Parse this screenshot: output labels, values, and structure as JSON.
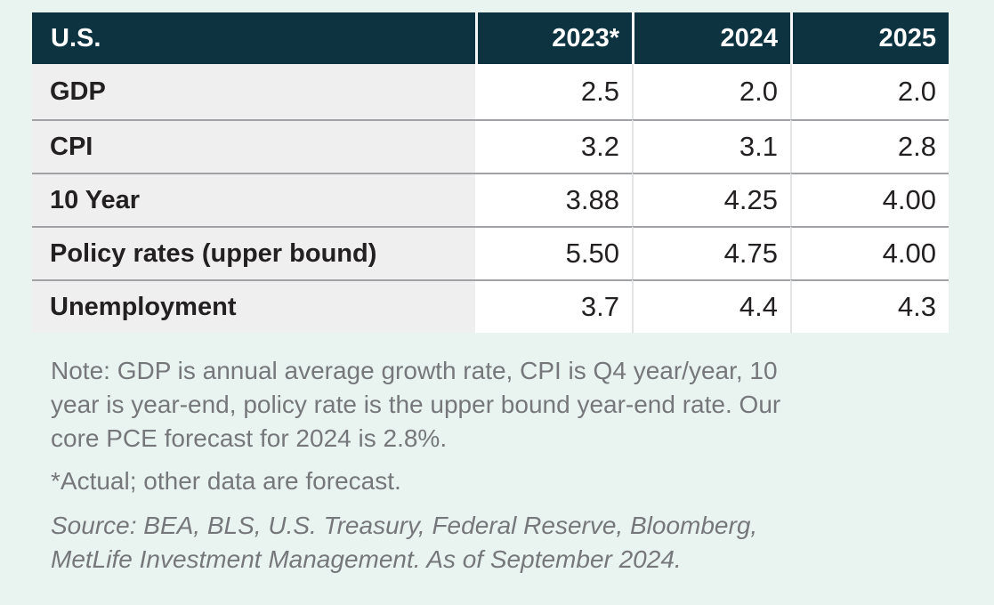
{
  "chart_data": {
    "type": "table",
    "title": "U.S.",
    "columns": [
      "2023*",
      "2024",
      "2025"
    ],
    "rows": [
      {
        "label": "GDP",
        "values": [
          "2.5",
          "2.0",
          "2.0"
        ]
      },
      {
        "label": "CPI",
        "values": [
          "3.2",
          "3.1",
          "2.8"
        ]
      },
      {
        "label": "10 Year",
        "values": [
          "3.88",
          "4.25",
          "4.00"
        ]
      },
      {
        "label": "Policy rates (upper bound)",
        "values": [
          "5.50",
          "4.75",
          "4.00"
        ]
      },
      {
        "label": "Unemployment",
        "values": [
          "3.7",
          "4.4",
          "4.3"
        ]
      }
    ],
    "layout_hints": {
      "label_column_background": "light-gray",
      "value_alignment": "right",
      "header_style": "dark-navy-band"
    }
  },
  "notes": {
    "note_lines": [
      "Note: GDP is annual average growth rate, CPI is Q4 year/year, 10",
      "year is year-end, policy rate is the upper bound year-end rate. Our",
      "core PCE forecast for 2024 is 2.8%."
    ],
    "actual": "*Actual; other data are forecast.",
    "source_lines": [
      "Source: BEA, BLS, U.S. Treasury, Federal Reserve, Bloomberg,",
      "MetLife Investment Management. As of September 2024."
    ]
  },
  "colors": {
    "page-bg": "#e9f4f1",
    "header-bg": "#0d3340",
    "header-text": "#ffffff",
    "label-col-bg": "#efefef",
    "cell-bg": "#ffffff",
    "row-divider": "#a0a2a5",
    "col-divider": "#e3e4e5",
    "header-gap": "#f4f8f7",
    "text-dark": "#232021",
    "note-text": "#76777a"
  }
}
